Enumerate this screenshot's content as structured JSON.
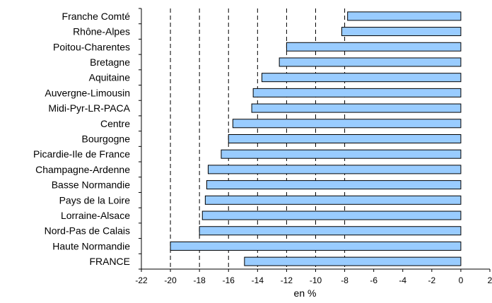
{
  "chart_data": {
    "type": "bar",
    "orientation": "horizontal",
    "categories": [
      "Franche Comté",
      "Rhône-Alpes",
      "Poitou-Charentes",
      "Bretagne",
      "Aquitaine",
      "Auvergne-Limousin",
      "Midi-Pyr-LR-PACA",
      "Centre",
      "Bourgogne",
      "Picardie-Ile de France",
      "Champagne-Ardenne",
      "Basse Normandie",
      "Pays de la Loire",
      "Lorraine-Alsace",
      "Nord-Pas de Calais",
      "Haute Normandie",
      "FRANCE"
    ],
    "values": [
      -7.8,
      -8.2,
      -12.0,
      -12.5,
      -13.7,
      -14.3,
      -14.4,
      -15.7,
      -16.0,
      -16.5,
      -17.4,
      -17.5,
      -17.6,
      -17.8,
      -18.0,
      -20.0,
      -14.9
    ],
    "xlabel": "en %",
    "xlim": [
      -22,
      2
    ],
    "xticks": [
      -22,
      -20,
      -18,
      -16,
      -14,
      -12,
      -10,
      -8,
      -6,
      -4,
      -2,
      0,
      2
    ],
    "gridlines": [
      -20,
      -18,
      -16,
      -14,
      -12,
      -10,
      -8
    ],
    "colors": {
      "bar": "#99CCFF",
      "bar_stroke": "#000000",
      "grid": "#000000"
    }
  }
}
